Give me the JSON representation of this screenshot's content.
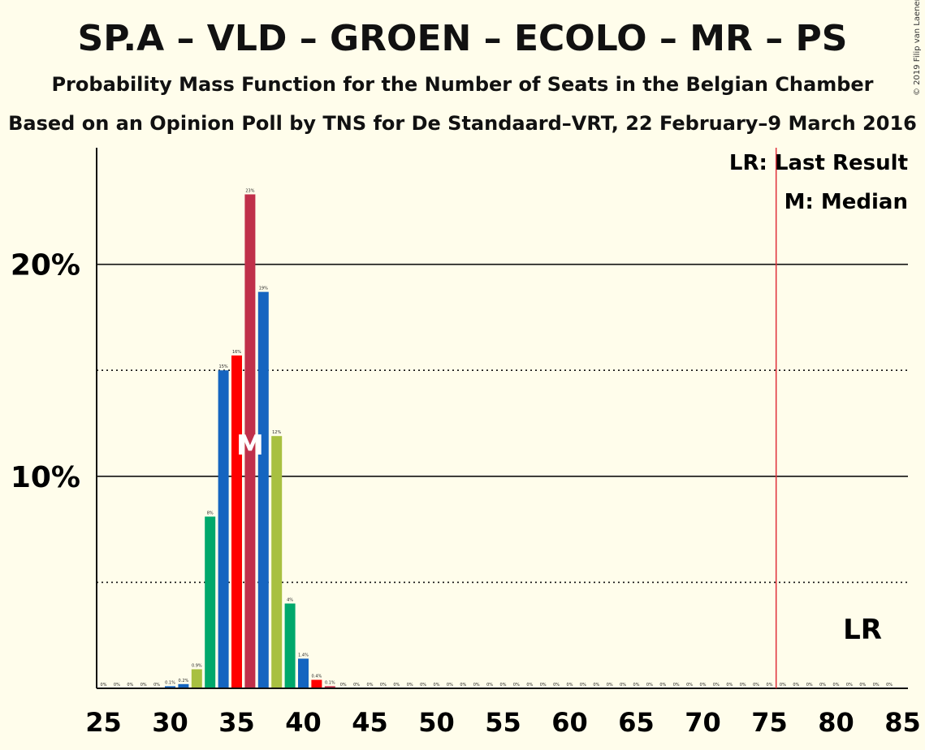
{
  "title": "SP.A – VLD – GROEN – ECOLO – MR – PS",
  "subtitle": "Probability Mass Function for the Number of Seats in the Belgian Chamber",
  "subtitle2": "Based on an Opinion Poll by TNS for De Standaard–VRT, 22 February–9 March 2016",
  "copyright": "© 2019 Filip van Laenen",
  "legend": {
    "last_result": "LR: Last Result",
    "median": "M: Median"
  },
  "markers": {
    "median_label": "M",
    "median_seat": 36,
    "last_result_label": "LR",
    "last_result_seat": 76
  },
  "colors": {
    "background": "#fffdeb",
    "last_result_line": "#e0303a",
    "palette": [
      "#00a86b",
      "#1565c0",
      "#ff0000",
      "#c0304a",
      "#a8c040"
    ]
  },
  "chart_data": {
    "type": "bar",
    "x": [
      25,
      26,
      27,
      28,
      29,
      30,
      31,
      32,
      33,
      34,
      35,
      36,
      37,
      38,
      39,
      40,
      41,
      42,
      43,
      44,
      45,
      46,
      47,
      48,
      49,
      50,
      51,
      52,
      53,
      54,
      55,
      56,
      57,
      58,
      59,
      60,
      61,
      62,
      63,
      64,
      65,
      66,
      67,
      68,
      69,
      70,
      71,
      72,
      73,
      74,
      75,
      76,
      77,
      78,
      79,
      80,
      81,
      82,
      83,
      84,
      85
    ],
    "values": [
      0,
      0,
      0,
      0,
      0,
      0.1,
      0.2,
      0.9,
      8.1,
      15.0,
      15.7,
      23.3,
      18.7,
      11.9,
      4.0,
      1.4,
      0.4,
      0.1,
      0,
      0,
      0,
      0,
      0,
      0,
      0,
      0,
      0,
      0,
      0,
      0,
      0,
      0,
      0,
      0,
      0,
      0,
      0,
      0,
      0,
      0,
      0,
      0,
      0,
      0,
      0,
      0,
      0,
      0,
      0,
      0,
      0,
      0,
      0,
      0,
      0,
      0,
      0,
      0,
      0,
      0,
      0
    ],
    "labels": [
      "0%",
      "0%",
      "0%",
      "0%",
      "0%",
      "0.1%",
      "0.2%",
      "0.9%",
      "8%",
      "15%",
      "16%",
      "23%",
      "19%",
      "12%",
      "4%",
      "1.4%",
      "0.4%",
      "0.1%",
      "0%",
      "0%",
      "0%",
      "0%",
      "0%",
      "0%",
      "0%",
      "0%",
      "0%",
      "0%",
      "0%",
      "0%",
      "0%",
      "0%",
      "0%",
      "0%",
      "0%",
      "0%",
      "0%",
      "0%",
      "0%",
      "0%",
      "0%",
      "0%",
      "0%",
      "0%",
      "0%",
      "0%",
      "0%",
      "0%",
      "0%",
      "0%",
      "0%",
      "0%",
      "0%",
      "0%",
      "0%",
      "0%",
      "0%",
      "0%",
      "0%",
      "0%",
      ""
    ],
    "color_index": [
      1,
      2,
      3,
      4,
      0,
      1,
      1,
      4,
      0,
      1,
      2,
      3,
      1,
      4,
      0,
      1,
      2,
      3,
      4,
      0,
      1,
      2,
      3,
      4,
      0,
      1,
      2,
      3,
      4,
      0,
      1,
      2,
      3,
      4,
      0,
      1,
      2,
      3,
      4,
      0,
      1,
      2,
      3,
      4,
      0,
      1,
      2,
      3,
      4,
      0,
      1,
      2,
      3,
      4,
      0,
      1,
      2,
      3,
      4,
      0,
      1
    ],
    "xticks": [
      "25",
      "30",
      "35",
      "40",
      "45",
      "50",
      "55",
      "60",
      "65",
      "70",
      "75",
      "80",
      "85"
    ],
    "yticks": [
      "10%",
      "20%"
    ],
    "ylim": [
      0,
      25.5
    ],
    "gridlines_solid": [
      10,
      20
    ],
    "gridlines_dotted": [
      5,
      15
    ]
  }
}
